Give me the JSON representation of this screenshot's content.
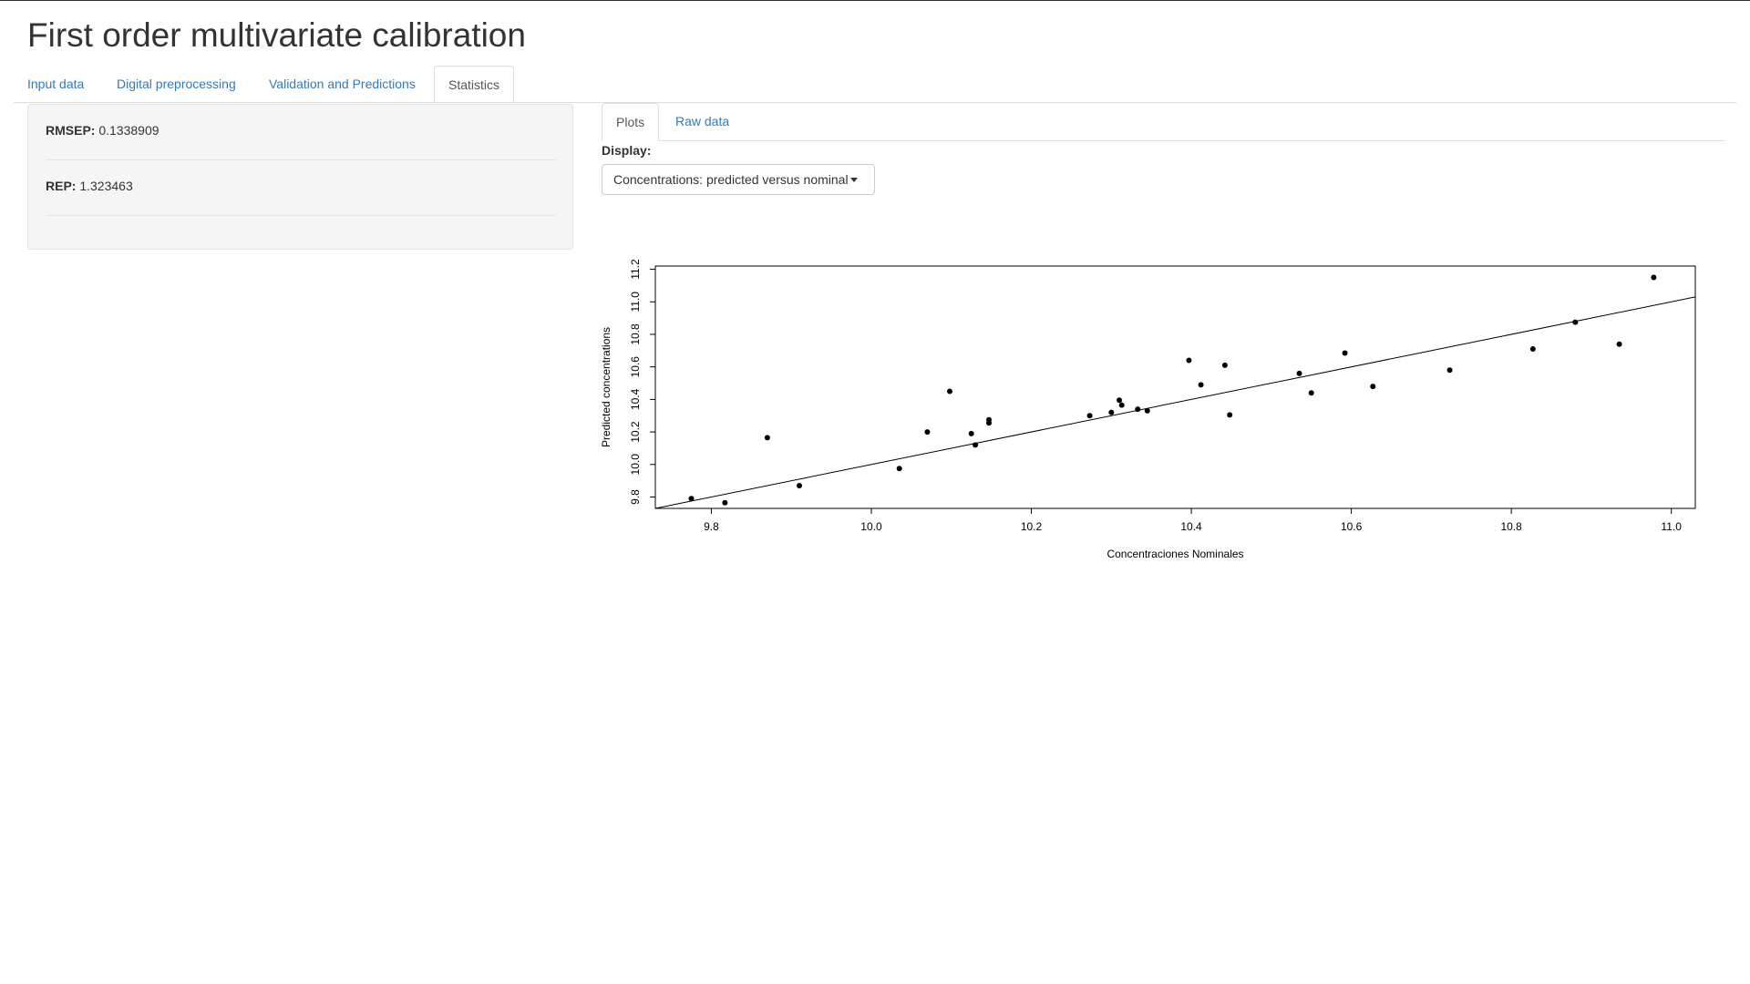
{
  "app": {
    "title": "First order multivariate calibration"
  },
  "main_tabs": [
    {
      "label": "Input data"
    },
    {
      "label": "Digital preprocessing"
    },
    {
      "label": "Validation and Predictions"
    },
    {
      "label": "Statistics"
    }
  ],
  "stats": {
    "rmsep": {
      "label": "RMSEP:",
      "value": "0.1338909"
    },
    "rep": {
      "label": "REP:",
      "value": "1.323463"
    }
  },
  "sub_tabs": [
    {
      "label": "Plots"
    },
    {
      "label": "Raw data"
    }
  ],
  "display": {
    "label": "Display:",
    "selected": "Concentrations: predicted versus nominal"
  },
  "chart_data": {
    "type": "scatter",
    "title": "",
    "xlabel": "Concentraciones Nominales",
    "ylabel": "Predicted concentrations",
    "xlim": [
      9.73,
      11.03
    ],
    "ylim": [
      9.73,
      11.22
    ],
    "xticks": [
      "9.8",
      "10.0",
      "10.2",
      "10.4",
      "10.6",
      "10.8",
      "11.0"
    ],
    "yticks": [
      "9.8",
      "10.0",
      "10.2",
      "10.4",
      "10.6",
      "10.8",
      "11.0",
      "11.2"
    ],
    "points": [
      [
        9.775,
        9.79
      ],
      [
        9.817,
        9.765
      ],
      [
        9.87,
        10.165
      ],
      [
        9.91,
        9.87
      ],
      [
        10.035,
        9.975
      ],
      [
        10.07,
        10.2
      ],
      [
        10.098,
        10.45
      ],
      [
        10.125,
        10.19
      ],
      [
        10.13,
        10.12
      ],
      [
        10.147,
        10.255
      ],
      [
        10.147,
        10.275
      ],
      [
        10.273,
        10.3
      ],
      [
        10.3,
        10.32
      ],
      [
        10.31,
        10.395
      ],
      [
        10.313,
        10.365
      ],
      [
        10.333,
        10.34
      ],
      [
        10.345,
        10.33
      ],
      [
        10.397,
        10.64
      ],
      [
        10.412,
        10.49
      ],
      [
        10.442,
        10.61
      ],
      [
        10.448,
        10.305
      ],
      [
        10.535,
        10.56
      ],
      [
        10.55,
        10.44
      ],
      [
        10.592,
        10.685
      ],
      [
        10.627,
        10.48
      ],
      [
        10.723,
        10.58
      ],
      [
        10.827,
        10.71
      ],
      [
        10.88,
        10.875
      ],
      [
        10.935,
        10.74
      ],
      [
        10.978,
        11.15
      ]
    ],
    "reference_line": {
      "slope": 1,
      "intercept": 0
    },
    "grid": false,
    "box": true
  }
}
